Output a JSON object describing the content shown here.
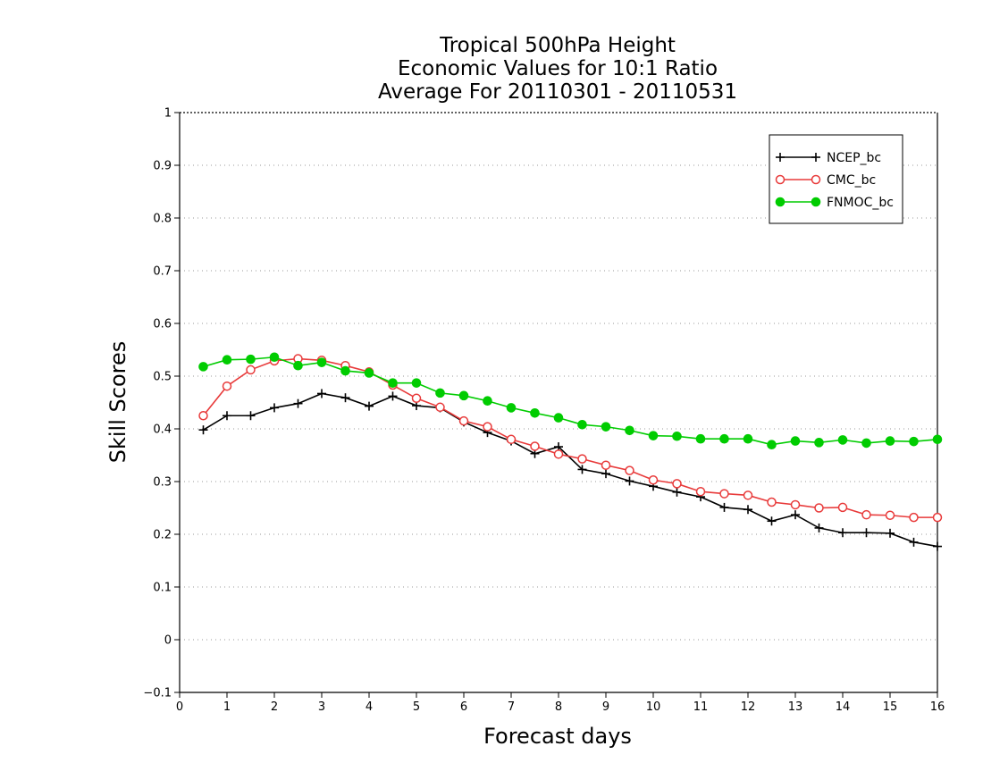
{
  "chart_data": {
    "type": "line",
    "title_lines": [
      "Tropical 500hPa Height",
      "Economic Values for 10:1 Ratio",
      "Average For 20110301 - 20110531"
    ],
    "xlabel": "Forecast days",
    "ylabel": "Skill Scores",
    "xlim": [
      0,
      16
    ],
    "ylim": [
      -0.1,
      1
    ],
    "x_ticks": [
      "0",
      "1",
      "2",
      "3",
      "4",
      "5",
      "6",
      "7",
      "8",
      "9",
      "10",
      "11",
      "12",
      "13",
      "14",
      "15",
      "16"
    ],
    "y_ticks": [
      "-0.1",
      "0",
      "0.1",
      "0.2",
      "0.3",
      "0.4",
      "0.5",
      "0.6",
      "0.7",
      "0.8",
      "0.9",
      "1"
    ],
    "grid": "dotted horizontal",
    "legend_position": "top-right",
    "x": [
      0.5,
      1,
      1.5,
      2,
      2.5,
      3,
      3.5,
      4,
      4.5,
      5,
      5.5,
      6,
      6.5,
      7,
      7.5,
      8,
      8.5,
      9,
      9.5,
      10,
      10.5,
      11,
      11.5,
      12,
      12.5,
      13,
      13.5,
      14,
      14.5,
      15,
      15.5,
      16
    ],
    "series": [
      {
        "name": "NCEP_bc",
        "color": "#000000",
        "marker": "plus",
        "values": [
          0.398,
          0.425,
          0.425,
          0.44,
          0.448,
          0.467,
          0.459,
          0.443,
          0.462,
          0.444,
          0.44,
          0.413,
          0.393,
          0.377,
          0.353,
          0.366,
          0.323,
          0.315,
          0.301,
          0.291,
          0.28,
          0.271,
          0.251,
          0.247,
          0.225,
          0.237,
          0.212,
          0.203,
          0.203,
          0.202,
          0.185,
          0.177
        ]
      },
      {
        "name": "CMC_bc",
        "color": "#e83a3a",
        "marker": "open-circle",
        "values": [
          0.425,
          0.481,
          0.512,
          0.529,
          0.533,
          0.53,
          0.52,
          0.508,
          0.483,
          0.458,
          0.441,
          0.415,
          0.404,
          0.38,
          0.367,
          0.352,
          0.343,
          0.331,
          0.321,
          0.303,
          0.296,
          0.281,
          0.277,
          0.274,
          0.261,
          0.256,
          0.25,
          0.251,
          0.237,
          0.236,
          0.232,
          0.232
        ]
      },
      {
        "name": "FNMOC_bc",
        "color": "#00cc00",
        "marker": "filled-circle",
        "values": [
          0.518,
          0.531,
          0.532,
          0.536,
          0.52,
          0.526,
          0.51,
          0.506,
          0.487,
          0.487,
          0.468,
          0.463,
          0.453,
          0.44,
          0.43,
          0.421,
          0.408,
          0.404,
          0.397,
          0.387,
          0.386,
          0.381,
          0.381,
          0.381,
          0.37,
          0.377,
          0.374,
          0.379,
          0.373,
          0.377,
          0.376,
          0.38
        ]
      }
    ]
  }
}
